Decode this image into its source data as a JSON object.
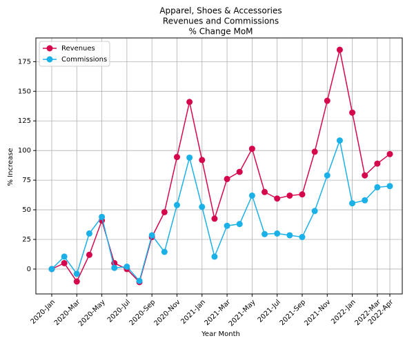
{
  "chart_data": {
    "type": "line",
    "title": [
      "Apparel, Shoes & Accessories",
      "Revenues and Commissions",
      "% Change MoM"
    ],
    "x_label": "Year Month",
    "y_label": "% Increase",
    "categories": [
      "2020-Jan",
      null,
      "2020-Mar",
      null,
      "2020-May",
      null,
      "2020-Jul",
      null,
      "2020-Sep",
      null,
      "2020-Nov",
      null,
      "2021-Jan",
      null,
      "2021-Mar",
      null,
      "2021-May",
      null,
      "2021-Jul",
      null,
      "2021-Sep",
      null,
      "2021-Nov",
      null,
      "2022-Jan",
      null,
      "2022-Mar",
      "2022-Apr"
    ],
    "series": [
      {
        "name": "Revenues",
        "color": "#d6064c",
        "values": [
          0,
          5,
          -10.5,
          12,
          41,
          5,
          0,
          -11,
          27,
          48,
          94.5,
          141,
          92,
          42.5,
          76,
          82,
          101.5,
          65,
          59.5,
          62,
          63,
          99,
          142,
          185,
          132,
          79,
          89,
          97
        ]
      },
      {
        "name": "Commissions",
        "color": "#1ab0e8",
        "values": [
          0,
          10.5,
          -4,
          30,
          44,
          1,
          2,
          -10,
          28.5,
          14.5,
          54,
          94,
          52.5,
          10.5,
          36.5,
          38,
          62,
          29.5,
          30,
          28.5,
          27,
          49,
          79,
          108.5,
          55.5,
          58,
          69,
          70
        ]
      }
    ],
    "ylim": [
      -21,
      195
    ],
    "yticks": [
      0,
      25,
      50,
      75,
      100,
      125,
      150,
      175
    ],
    "grid": true,
    "legend": "upper-left"
  }
}
